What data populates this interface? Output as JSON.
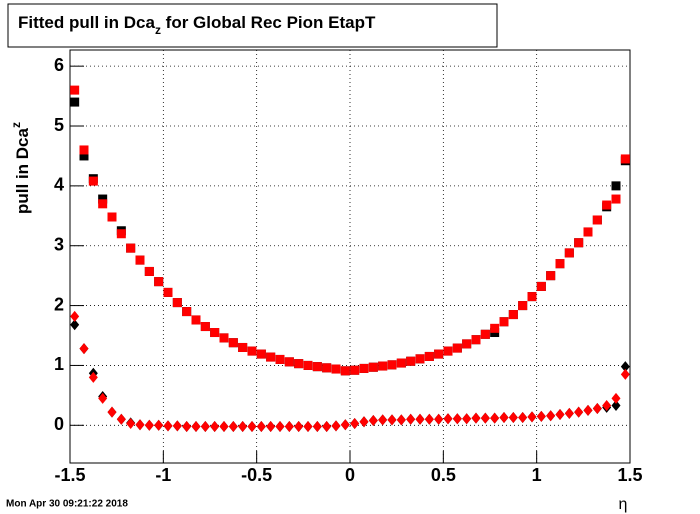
{
  "chart_data": {
    "type": "scatter",
    "title": [
      "Fitted pull in Dca",
      "z",
      " for Global Rec Pion EtapT"
    ],
    "y_label": [
      "pull in Dca",
      "z"
    ],
    "x_label": "η",
    "timestamp": "Mon Apr 30 09:21:22 2018",
    "x": [
      -1.475,
      -1.425,
      -1.375,
      -1.325,
      -1.275,
      -1.225,
      -1.175,
      -1.125,
      -1.075,
      -1.025,
      -0.975,
      -0.925,
      -0.875,
      -0.825,
      -0.775,
      -0.725,
      -0.675,
      -0.625,
      -0.575,
      -0.525,
      -0.475,
      -0.425,
      -0.375,
      -0.325,
      -0.275,
      -0.225,
      -0.175,
      -0.125,
      -0.075,
      -0.025,
      0.025,
      0.075,
      0.125,
      0.175,
      0.225,
      0.275,
      0.325,
      0.375,
      0.425,
      0.475,
      0.525,
      0.575,
      0.625,
      0.675,
      0.725,
      0.775,
      0.825,
      0.875,
      0.925,
      0.975,
      1.025,
      1.075,
      1.125,
      1.175,
      1.225,
      1.275,
      1.325,
      1.375,
      1.425,
      1.475
    ],
    "series": [
      {
        "color": "#000000",
        "marker": "square",
        "values": [
          5.4,
          4.5,
          4.12,
          3.78,
          3.48,
          3.25,
          2.96,
          2.76,
          2.57,
          2.4,
          2.22,
          2.05,
          1.9,
          1.76,
          1.65,
          1.55,
          1.46,
          1.38,
          1.3,
          1.24,
          1.19,
          1.14,
          1.1,
          1.06,
          1.03,
          1.0,
          0.98,
          0.96,
          0.94,
          0.91,
          0.92,
          0.95,
          0.97,
          0.99,
          1.01,
          1.04,
          1.07,
          1.11,
          1.15,
          1.19,
          1.24,
          1.29,
          1.36,
          1.43,
          1.52,
          1.55,
          1.73,
          1.85,
          2.0,
          2.15,
          2.32,
          2.5,
          2.7,
          2.88,
          3.05,
          3.23,
          3.43,
          3.65,
          4.0,
          4.42
        ]
      },
      {
        "color": "#ff0000",
        "marker": "square",
        "values": [
          5.6,
          4.6,
          4.08,
          3.7,
          3.48,
          3.2,
          2.96,
          2.76,
          2.57,
          2.4,
          2.22,
          2.05,
          1.9,
          1.76,
          1.65,
          1.55,
          1.46,
          1.38,
          1.3,
          1.24,
          1.19,
          1.14,
          1.1,
          1.06,
          1.03,
          1.0,
          0.98,
          0.96,
          0.94,
          0.91,
          0.92,
          0.95,
          0.97,
          0.99,
          1.01,
          1.04,
          1.07,
          1.11,
          1.15,
          1.19,
          1.24,
          1.29,
          1.36,
          1.43,
          1.52,
          1.62,
          1.73,
          1.85,
          2.0,
          2.15,
          2.32,
          2.5,
          2.7,
          2.88,
          3.05,
          3.23,
          3.43,
          3.68,
          3.78,
          4.45
        ]
      },
      {
        "color": "#000000",
        "marker": "diamond",
        "values": [
          1.68,
          1.28,
          0.87,
          0.48,
          0.22,
          0.1,
          0.04,
          0.01,
          0.0,
          0.0,
          -0.01,
          -0.01,
          -0.02,
          -0.02,
          -0.02,
          -0.02,
          -0.02,
          -0.02,
          -0.02,
          -0.02,
          -0.02,
          -0.02,
          -0.02,
          -0.02,
          -0.02,
          -0.02,
          -0.02,
          -0.02,
          -0.01,
          0.01,
          0.03,
          0.06,
          0.08,
          0.09,
          0.09,
          0.09,
          0.1,
          0.1,
          0.1,
          0.1,
          0.11,
          0.11,
          0.11,
          0.12,
          0.12,
          0.12,
          0.13,
          0.13,
          0.13,
          0.14,
          0.15,
          0.16,
          0.18,
          0.2,
          0.22,
          0.25,
          0.28,
          0.3,
          0.33,
          0.98
        ]
      },
      {
        "color": "#ff0000",
        "marker": "diamond",
        "values": [
          1.82,
          1.28,
          0.8,
          0.45,
          0.22,
          0.1,
          0.03,
          0.01,
          0.0,
          0.0,
          -0.01,
          -0.01,
          -0.02,
          -0.02,
          -0.02,
          -0.02,
          -0.02,
          -0.02,
          -0.02,
          -0.02,
          -0.02,
          -0.02,
          -0.02,
          -0.02,
          -0.02,
          -0.02,
          -0.02,
          -0.02,
          -0.01,
          0.01,
          0.03,
          0.06,
          0.08,
          0.09,
          0.09,
          0.09,
          0.1,
          0.1,
          0.1,
          0.1,
          0.11,
          0.11,
          0.11,
          0.12,
          0.12,
          0.12,
          0.13,
          0.13,
          0.13,
          0.14,
          0.15,
          0.16,
          0.18,
          0.2,
          0.22,
          0.25,
          0.28,
          0.33,
          0.45,
          0.85
        ]
      }
    ],
    "xlim": [
      -1.5,
      1.5
    ],
    "ylim": [
      -0.63,
      6.27
    ],
    "xticks": [
      -1.5,
      -1,
      -0.5,
      0,
      0.5,
      1,
      1.5
    ],
    "yticks": [
      0,
      1,
      2,
      3,
      4,
      5,
      6
    ],
    "grid": true
  }
}
